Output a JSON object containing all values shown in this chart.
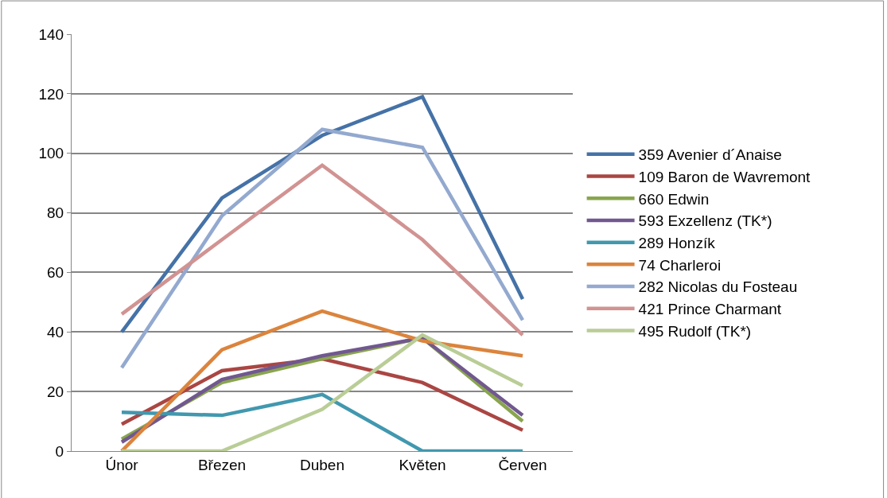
{
  "chart_data": {
    "type": "line",
    "categories": [
      "Únor",
      "Březen",
      "Duben",
      "Květen",
      "Červen"
    ],
    "series": [
      {
        "name": "359 Avenier d´Anaise",
        "color": "#4572a7",
        "values": [
          40,
          85,
          106,
          119,
          51
        ]
      },
      {
        "name": "109 Baron de Wavremont",
        "color": "#aa4643",
        "values": [
          9,
          27,
          31,
          23,
          7
        ]
      },
      {
        "name": "660 Edwin",
        "color": "#89a54e",
        "values": [
          4,
          23,
          31,
          38,
          10
        ]
      },
      {
        "name": "593 Exzellenz (TK*)",
        "color": "#71588f",
        "values": [
          3,
          24,
          32,
          38,
          12
        ]
      },
      {
        "name": "289 Honzík",
        "color": "#4198af",
        "values": [
          13,
          12,
          19,
          0,
          0
        ]
      },
      {
        "name": "74 Charleroi",
        "color": "#db843d",
        "values": [
          0,
          34,
          47,
          37,
          32
        ]
      },
      {
        "name": "282 Nicolas du Fosteau",
        "color": "#93a9cf",
        "values": [
          28,
          79,
          108,
          102,
          44
        ]
      },
      {
        "name": "421 Prince Charmant",
        "color": "#d19392",
        "values": [
          46,
          71,
          96,
          71,
          39
        ]
      },
      {
        "name": "495 Rudolf (TK*)",
        "color": "#b9cd96",
        "values": [
          0,
          0,
          14,
          39,
          22
        ]
      }
    ],
    "ylim": [
      0,
      140
    ],
    "yticks": [
      0,
      20,
      40,
      60,
      80,
      100,
      120,
      140
    ],
    "grid": "y",
    "legend": "right",
    "marker": "none",
    "line_style": "solid"
  }
}
